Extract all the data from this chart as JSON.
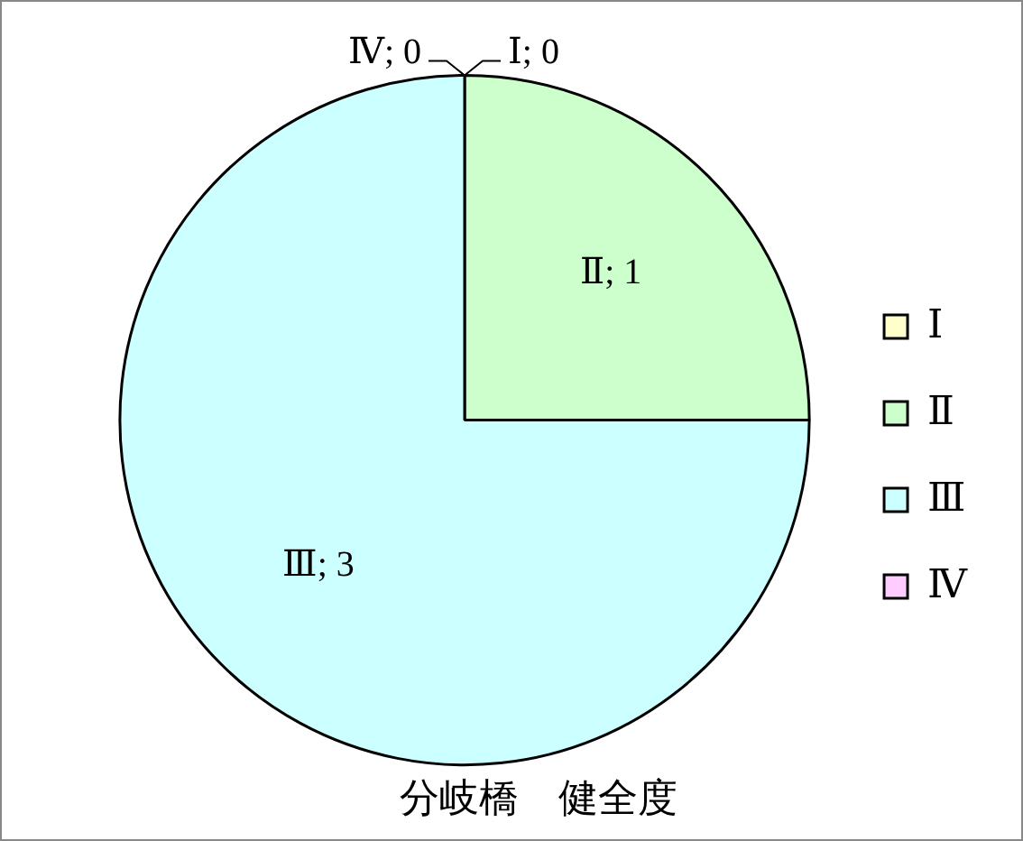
{
  "chart_data": {
    "type": "pie",
    "title": "分岐橋　健全度",
    "categories": [
      "Ⅰ",
      "Ⅱ",
      "Ⅲ",
      "Ⅳ"
    ],
    "values": [
      0,
      1,
      3,
      0
    ],
    "colors": [
      "#ffffcc",
      "#ccffcc",
      "#ccffff",
      "#ffccff"
    ],
    "value_labels": [
      "Ⅰ; 0",
      "Ⅱ; 1",
      "Ⅲ; 3",
      "Ⅳ; 0"
    ],
    "legend": "right"
  }
}
